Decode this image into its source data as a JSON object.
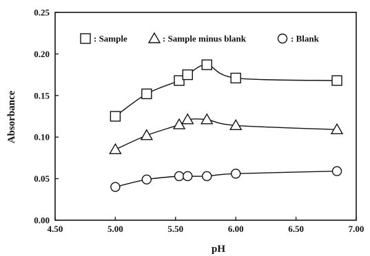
{
  "chart_data": {
    "type": "line",
    "xlabel": "pH",
    "ylabel": "Absorbance",
    "xlim": [
      4.5,
      7.0
    ],
    "ylim": [
      0.0,
      0.25
    ],
    "x_ticks": [
      "4.50",
      "5.00",
      "5.50",
      "6.00",
      "6.50",
      "7.00"
    ],
    "y_ticks": [
      "0.00",
      "0.05",
      "0.10",
      "0.15",
      "0.20",
      "0.25"
    ],
    "grid": false,
    "legend_position": "top",
    "series": [
      {
        "name": "Sample",
        "marker": "square",
        "x": [
          5.0,
          5.26,
          5.53,
          5.6,
          5.76,
          6.0,
          6.84
        ],
        "y": [
          0.125,
          0.152,
          0.168,
          0.175,
          0.187,
          0.171,
          0.168
        ]
      },
      {
        "name": "Sample minus blank",
        "marker": "triangle",
        "x": [
          5.0,
          5.26,
          5.53,
          5.6,
          5.76,
          6.0,
          6.84
        ],
        "y": [
          0.085,
          0.102,
          0.115,
          0.121,
          0.121,
          0.114,
          0.109
        ]
      },
      {
        "name": "Blank",
        "marker": "circle",
        "x": [
          5.0,
          5.26,
          5.53,
          5.6,
          5.76,
          6.0,
          6.84
        ],
        "y": [
          0.04,
          0.049,
          0.053,
          0.053,
          0.053,
          0.056,
          0.059
        ]
      }
    ],
    "legend": [
      {
        "symbol": "square",
        "text": "□ : Sample"
      },
      {
        "symbol": "triangle",
        "text": "△ : Sample minus blank"
      },
      {
        "symbol": "circle",
        "text": "○ : Blank"
      }
    ]
  },
  "legend_labels": [
    ": Sample",
    ": Sample minus blank",
    ": Blank"
  ],
  "colors": {
    "ink": "#111111",
    "background": "#ffffff"
  }
}
